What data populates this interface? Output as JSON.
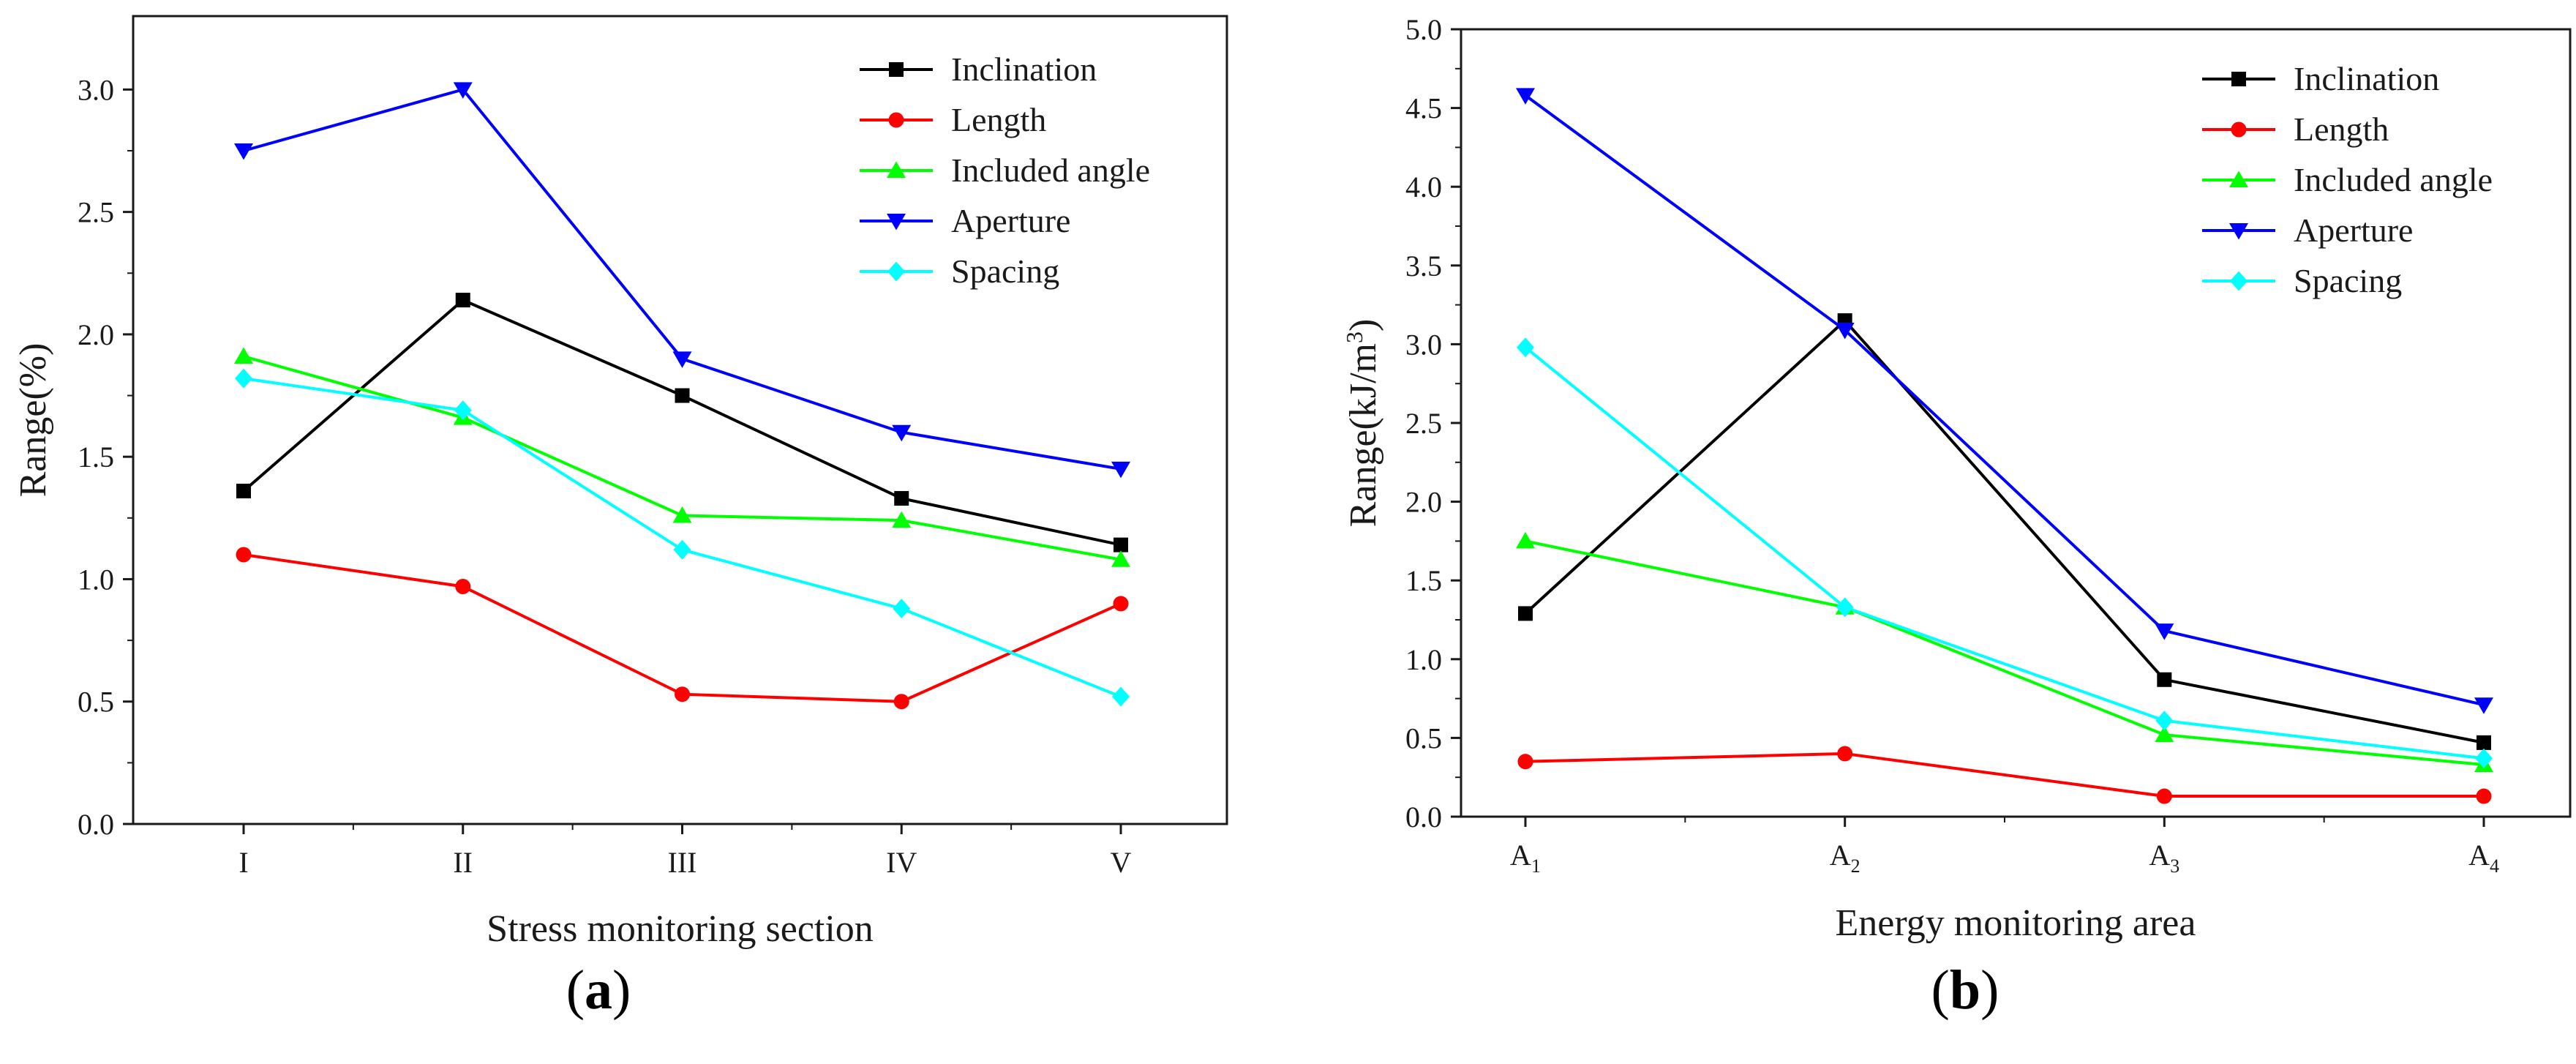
{
  "figure": {
    "panels": [
      {
        "label_open": "(",
        "label_letter": "a",
        "label_close": ")"
      },
      {
        "label_open": "(",
        "label_letter": "b",
        "label_close": ")"
      }
    ]
  },
  "chart_data": [
    {
      "type": "line",
      "title": "",
      "xlabel": "Stress monitoring section",
      "ylabel": "Range(%)",
      "categories": [
        "I",
        "II",
        "III",
        "IV",
        "V"
      ],
      "ylim": [
        0,
        3.3
      ],
      "yticks": [
        "0.0",
        "0.5",
        "1.0",
        "1.5",
        "2.0",
        "2.5",
        "3.0"
      ],
      "ytick_values": [
        0,
        0.5,
        1.0,
        1.5,
        2.0,
        2.5,
        3.0
      ],
      "grid": false,
      "legend_position": "top-right",
      "series": [
        {
          "name": "Inclination",
          "color": "#000000",
          "marker": "square",
          "values": [
            1.36,
            2.14,
            1.75,
            1.33,
            1.14
          ]
        },
        {
          "name": "Length",
          "color": "#ff0000",
          "marker": "circle",
          "values": [
            1.1,
            0.97,
            0.53,
            0.5,
            0.9
          ]
        },
        {
          "name": "Included angle",
          "color": "#00ff00",
          "marker": "triangle-up",
          "values": [
            1.91,
            1.66,
            1.26,
            1.24,
            1.08
          ]
        },
        {
          "name": "Aperture",
          "color": "#0000ff",
          "marker": "triangle-down",
          "values": [
            2.75,
            3.0,
            1.9,
            1.6,
            1.45
          ]
        },
        {
          "name": "Spacing",
          "color": "#00ffff",
          "marker": "diamond",
          "values": [
            1.82,
            1.69,
            1.12,
            0.88,
            0.52
          ]
        }
      ]
    },
    {
      "type": "line",
      "title": "",
      "xlabel": "Energy monitoring area",
      "ylabel": "Range(kJ/m³)",
      "ylabel_parts": {
        "base": "Range(kJ/m",
        "sup": "3",
        "end": ")"
      },
      "categories": [
        "A1",
        "A2",
        "A3",
        "A4"
      ],
      "category_parts": [
        {
          "base": "A",
          "sub": "1"
        },
        {
          "base": "A",
          "sub": "2"
        },
        {
          "base": "A",
          "sub": "3"
        },
        {
          "base": "A",
          "sub": "4"
        }
      ],
      "ylim": [
        0,
        5.0
      ],
      "yticks": [
        "0.0",
        "0.5",
        "1.0",
        "1.5",
        "2.0",
        "2.5",
        "3.0",
        "3.5",
        "4.0",
        "4.5",
        "5.0"
      ],
      "ytick_values": [
        0,
        0.5,
        1.0,
        1.5,
        2.0,
        2.5,
        3.0,
        3.5,
        4.0,
        4.5,
        5.0
      ],
      "grid": false,
      "legend_position": "top-right",
      "series": [
        {
          "name": "Inclination",
          "color": "#000000",
          "marker": "square",
          "values": [
            1.29,
            3.15,
            0.87,
            0.47
          ]
        },
        {
          "name": "Length",
          "color": "#ff0000",
          "marker": "circle",
          "values": [
            0.35,
            0.4,
            0.13,
            0.13
          ]
        },
        {
          "name": "Included angle",
          "color": "#00ff00",
          "marker": "triangle-up",
          "values": [
            1.75,
            1.33,
            0.52,
            0.33
          ]
        },
        {
          "name": "Aperture",
          "color": "#0000ff",
          "marker": "triangle-down",
          "values": [
            4.58,
            3.09,
            1.18,
            0.71
          ]
        },
        {
          "name": "Spacing",
          "color": "#00ffff",
          "marker": "diamond",
          "values": [
            2.98,
            1.33,
            0.61,
            0.37
          ]
        }
      ]
    }
  ]
}
